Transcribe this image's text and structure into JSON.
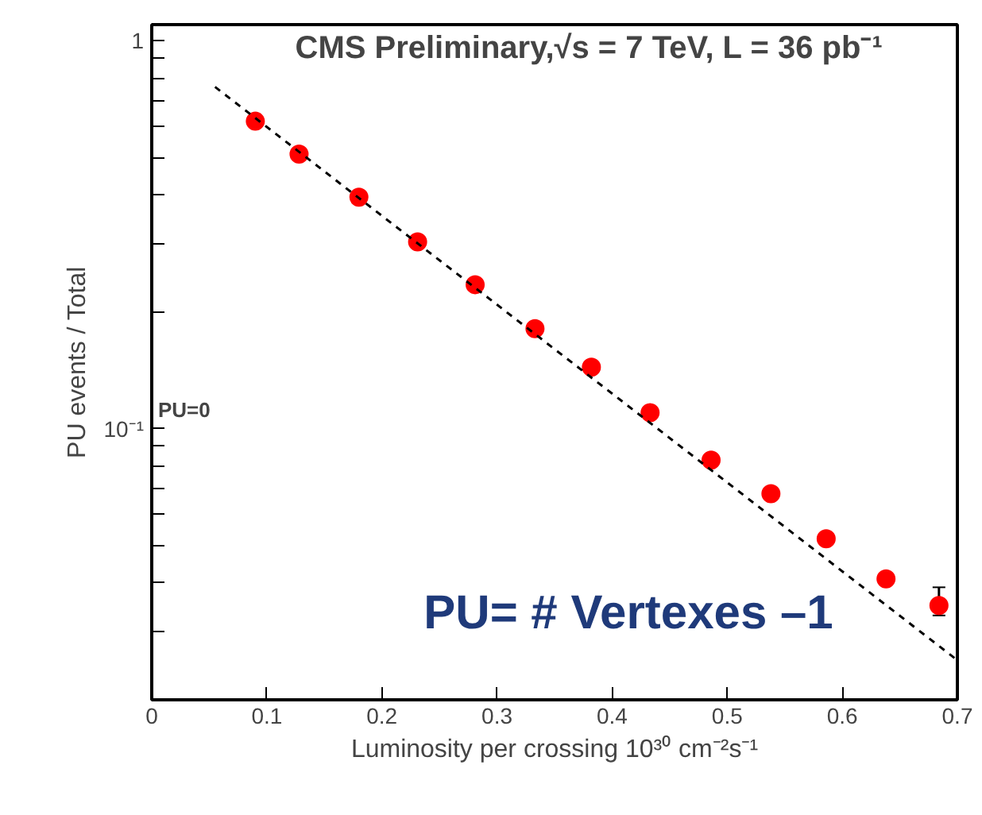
{
  "chart_data": {
    "type": "scatter",
    "title": "CMS Preliminary,√s = 7 TeV, L = 36 pb⁻¹",
    "xlabel": "Luminosity per crossing 10³⁰ cm⁻²s⁻¹",
    "ylabel": "PU events / Total",
    "x": [
      0.09,
      0.128,
      0.18,
      0.231,
      0.281,
      0.333,
      0.382,
      0.433,
      0.486,
      0.538,
      0.586,
      0.638,
      0.684
    ],
    "series": [
      {
        "color": "#ff0000",
        "values": [
          0.62,
          0.51,
          0.395,
          0.303,
          0.235,
          0.181,
          0.144,
          0.11,
          0.083,
          0.068,
          0.052,
          0.041,
          0.035
        ],
        "errors": [
          null,
          null,
          null,
          null,
          null,
          null,
          null,
          null,
          null,
          null,
          null,
          null,
          [
            0.033,
            0.039
          ]
        ]
      },
      {
        "type": "line",
        "color": "#000000",
        "line_style": "dashed",
        "marker": "none",
        "x": [
          0.055,
          0.7
        ],
        "values": [
          0.76,
          0.0253
        ]
      }
    ],
    "marker": "circle",
    "log": "y",
    "grid": false,
    "xlim": [
      0,
      0.7
    ],
    "xticks": [
      0,
      0.1,
      0.2,
      0.3,
      0.4,
      0.5,
      0.6,
      0.7
    ],
    "ylim": [
      0.02,
      1.1
    ],
    "yticks": [
      {
        "value": 0.02,
        "label": null
      },
      {
        "value": 0.03,
        "label": null
      },
      {
        "value": 0.04,
        "label": null
      },
      {
        "value": 0.05,
        "label": null
      },
      {
        "value": 0.06,
        "label": null
      },
      {
        "value": 0.07,
        "label": null
      },
      {
        "value": 0.08,
        "label": null
      },
      {
        "value": 0.09,
        "label": null
      },
      {
        "value": 0.1,
        "label": "10⁻¹"
      },
      {
        "value": 0.2,
        "label": null
      },
      {
        "value": 0.3,
        "label": null
      },
      {
        "value": 0.4,
        "label": null
      },
      {
        "value": 0.5,
        "label": null
      },
      {
        "value": 0.6,
        "label": null
      },
      {
        "value": 0.7,
        "label": null
      },
      {
        "value": 0.8,
        "label": null
      },
      {
        "value": 0.9,
        "label": null
      },
      {
        "value": 1,
        "label": "1"
      }
    ],
    "annotations": [
      "PU=0",
      "PU= # Vertexes –1"
    ]
  }
}
